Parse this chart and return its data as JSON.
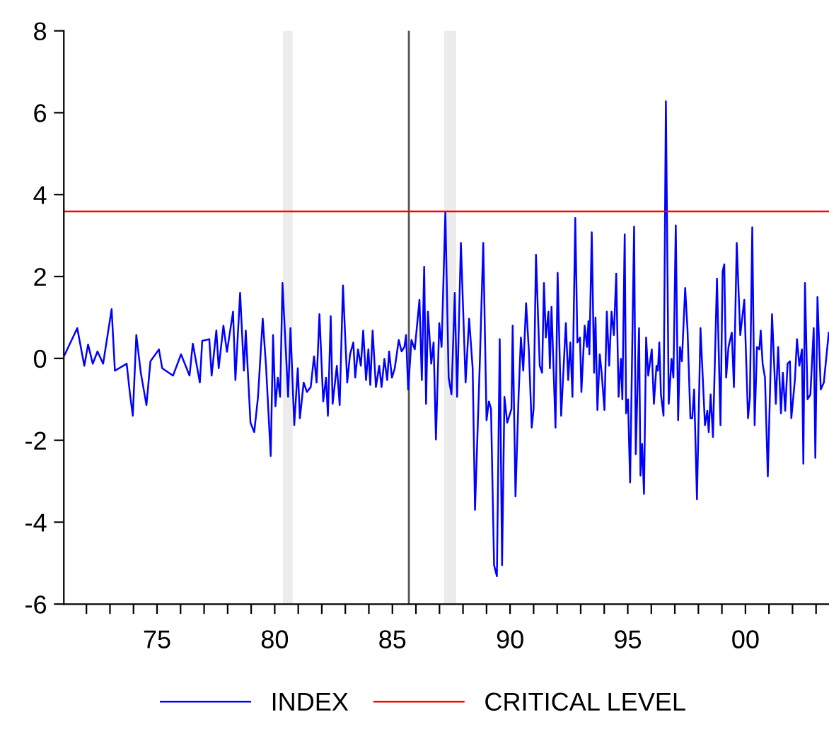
{
  "chart_data": {
    "type": "line",
    "xlim": [
      1971.04,
      2003.55
    ],
    "xticks": [
      {
        "value": 1972,
        "label": null
      },
      {
        "value": 1973,
        "label": null
      },
      {
        "value": 1974,
        "label": null
      },
      {
        "value": 1975,
        "label": "75"
      },
      {
        "value": 1976,
        "label": null
      },
      {
        "value": 1977,
        "label": null
      },
      {
        "value": 1978,
        "label": null
      },
      {
        "value": 1979,
        "label": null
      },
      {
        "value": 1980,
        "label": "80"
      },
      {
        "value": 1981,
        "label": null
      },
      {
        "value": 1982,
        "label": null
      },
      {
        "value": 1983,
        "label": null
      },
      {
        "value": 1984,
        "label": null
      },
      {
        "value": 1985,
        "label": "85"
      },
      {
        "value": 1986,
        "label": null
      },
      {
        "value": 1987,
        "label": null
      },
      {
        "value": 1988,
        "label": null
      },
      {
        "value": 1989,
        "label": null
      },
      {
        "value": 1990,
        "label": "90"
      },
      {
        "value": 1991,
        "label": null
      },
      {
        "value": 1992,
        "label": null
      },
      {
        "value": 1993,
        "label": null
      },
      {
        "value": 1994,
        "label": null
      },
      {
        "value": 1995,
        "label": "95"
      },
      {
        "value": 1996,
        "label": null
      },
      {
        "value": 1997,
        "label": null
      },
      {
        "value": 1998,
        "label": null
      },
      {
        "value": 1999,
        "label": null
      },
      {
        "value": 2000,
        "label": "00"
      },
      {
        "value": 2001,
        "label": null
      },
      {
        "value": 2002,
        "label": null
      },
      {
        "value": 2003,
        "label": null
      }
    ],
    "ylim": [
      -6,
      8
    ],
    "yticks": [
      -6,
      -4,
      -2,
      0,
      2,
      4,
      6,
      8
    ],
    "grid": false,
    "legend": "bottom",
    "ref_lines": [
      {
        "axis": "x",
        "value": 1985.7,
        "color": "#555555"
      }
    ],
    "bands": [
      {
        "axis": "x",
        "from": 1980.35,
        "to": 1980.76,
        "color": "#ececec"
      },
      {
        "axis": "x",
        "from": 1987.19,
        "to": 1987.71,
        "color": "#ececec"
      }
    ],
    "series": [
      {
        "name": "INDEX",
        "color": "#0000ff",
        "x": [
          1971.07,
          1971.61,
          1971.91,
          1972.07,
          1972.27,
          1972.47,
          1972.71,
          1973.07,
          1973.21,
          1973.71,
          1973.85,
          1973.97,
          1974.12,
          1974.31,
          1974.55,
          1974.72,
          1975.08,
          1975.22,
          1975.68,
          1976.02,
          1976.38,
          1976.52,
          1976.82,
          1976.92,
          1977.22,
          1977.32,
          1977.52,
          1977.62,
          1977.82,
          1977.97,
          1978.23,
          1978.33,
          1978.53,
          1978.69,
          1978.77,
          1978.97,
          1979.13,
          1979.29,
          1979.49,
          1979.63,
          1979.83,
          1979.93,
          1980.03,
          1980.13,
          1980.23,
          1980.33,
          1980.57,
          1980.67,
          1980.83,
          1980.98,
          1981.07,
          1981.23,
          1981.37,
          1981.53,
          1981.67,
          1981.78,
          1981.9,
          1982.06,
          1982.18,
          1982.26,
          1982.38,
          1982.46,
          1982.64,
          1982.76,
          1982.9,
          1983.08,
          1983.2,
          1983.34,
          1983.42,
          1983.54,
          1983.66,
          1983.76,
          1983.88,
          1983.98,
          1984.06,
          1984.16,
          1984.3,
          1984.44,
          1984.54,
          1984.66,
          1984.78,
          1984.86,
          1984.98,
          1985.1,
          1985.27,
          1985.39,
          1985.51,
          1985.58,
          1985.67,
          1985.81,
          1985.95,
          1986.15,
          1986.25,
          1986.35,
          1986.43,
          1986.51,
          1986.65,
          1986.75,
          1986.85,
          1986.99,
          1987.09,
          1987.25,
          1987.39,
          1987.51,
          1987.65,
          1987.75,
          1987.91,
          1988.11,
          1988.26,
          1988.41,
          1988.51,
          1988.71,
          1988.86,
          1989.0,
          1989.1,
          1989.19,
          1989.32,
          1989.44,
          1989.56,
          1989.66,
          1989.76,
          1989.88,
          1990.06,
          1990.11,
          1990.23,
          1990.36,
          1990.46,
          1990.56,
          1990.68,
          1990.8,
          1990.92,
          1991.0,
          1991.1,
          1991.26,
          1991.36,
          1991.44,
          1991.52,
          1991.63,
          1991.69,
          1991.76,
          1991.93,
          1992.02,
          1992.17,
          1992.37,
          1992.47,
          1992.56,
          1992.65,
          1992.77,
          1992.86,
          1992.97,
          1993.03,
          1993.17,
          1993.27,
          1993.33,
          1993.37,
          1993.47,
          1993.57,
          1993.63,
          1993.71,
          1993.81,
          1993.89,
          1994.01,
          1994.11,
          1994.21,
          1994.31,
          1994.41,
          1994.51,
          1994.61,
          1994.71,
          1994.77,
          1994.87,
          1994.93,
          1995.01,
          1995.1,
          1995.27,
          1995.34,
          1995.48,
          1995.54,
          1995.61,
          1995.69,
          1995.78,
          1995.87,
          1996.02,
          1996.11,
          1996.22,
          1996.28,
          1996.34,
          1996.41,
          1996.52,
          1996.62,
          1996.74,
          1996.86,
          1996.94,
          1997.04,
          1997.14,
          1997.22,
          1997.3,
          1997.44,
          1997.54,
          1997.66,
          1997.74,
          1997.82,
          1997.94,
          1998.09,
          1998.28,
          1998.38,
          1998.44,
          1998.52,
          1998.62,
          1998.79,
          1998.94,
          1999.03,
          1999.1,
          1999.18,
          1999.28,
          1999.42,
          1999.51,
          1999.63,
          1999.78,
          1999.95,
          2000.11,
          2000.19,
          2000.29,
          2000.39,
          2000.49,
          2000.59,
          2000.65,
          2000.73,
          2000.83,
          2000.95,
          2001.13,
          2001.29,
          2001.39,
          2001.51,
          2001.59,
          2001.69,
          2001.79,
          2001.89,
          2001.95,
          2002.1,
          2002.19,
          2002.29,
          2002.4,
          2002.46,
          2002.53,
          2002.64,
          2002.76,
          2002.9,
          2002.97,
          2003.06,
          2003.2,
          2003.33,
          2003.54
        ],
        "values": [
          0.08,
          0.74,
          -0.18,
          0.34,
          -0.13,
          0.17,
          -0.13,
          1.2,
          -0.3,
          -0.13,
          -0.87,
          -1.4,
          0.57,
          -0.35,
          -1.14,
          -0.07,
          0.22,
          -0.24,
          -0.42,
          0.1,
          -0.42,
          0.36,
          -0.59,
          0.43,
          0.47,
          -0.42,
          0.68,
          -0.24,
          0.8,
          0.16,
          1.14,
          -0.53,
          1.6,
          -0.3,
          0.68,
          -1.57,
          -1.8,
          -0.94,
          0.97,
          -0.18,
          -2.38,
          0.57,
          -1.17,
          -0.47,
          -0.94,
          1.84,
          -0.94,
          0.74,
          -1.63,
          -0.24,
          -1.46,
          -0.59,
          -0.82,
          -0.7,
          0.05,
          -0.59,
          1.08,
          -1.05,
          -0.47,
          -1.4,
          1.03,
          -1.11,
          -0.18,
          -1.14,
          1.78,
          -0.59,
          0.1,
          0.39,
          -0.47,
          0.22,
          -0.18,
          0.68,
          -0.53,
          0.22,
          -0.65,
          0.68,
          -0.7,
          -0.18,
          -0.7,
          -0.01,
          -0.53,
          0.17,
          -0.47,
          -0.24,
          0.45,
          0.17,
          0.28,
          0.57,
          -0.76,
          0.45,
          0.22,
          1.43,
          -0.53,
          2.24,
          -1.11,
          1.14,
          -0.13,
          0.39,
          -1.98,
          0.86,
          0.28,
          3.57,
          -0.47,
          -0.88,
          1.6,
          -0.94,
          2.82,
          -0.59,
          0.97,
          -0.24,
          -3.7,
          -0.18,
          2.82,
          -1.51,
          -1.05,
          -1.23,
          -5.05,
          -5.32,
          0.47,
          -5.05,
          -0.94,
          -1.57,
          -1.23,
          0.8,
          -3.37,
          -0.94,
          0.51,
          -0.3,
          1.35,
          0.17,
          -1.69,
          -1.23,
          2.53,
          -0.18,
          -0.35,
          1.84,
          0.51,
          1.14,
          -0.24,
          1.26,
          -1.69,
          2.09,
          -1.4,
          0.86,
          -0.53,
          0.39,
          -0.94,
          3.43,
          0.39,
          0.51,
          -0.82,
          0.8,
          0.28,
          0.91,
          0.1,
          3.08,
          -0.35,
          1.0,
          -1.26,
          0.1,
          -0.35,
          -1.26,
          1.14,
          -0.18,
          1.14,
          0.57,
          2.07,
          -0.94,
          -0.01,
          -1.0,
          3.03,
          -1.34,
          -1.0,
          -3.03,
          3.22,
          -2.34,
          0.74,
          -2.86,
          -2.09,
          -3.31,
          0.51,
          -0.42,
          0.22,
          -1.11,
          -0.18,
          -0.3,
          0.39,
          -0.88,
          -1.4,
          6.28,
          -1.11,
          -0.01,
          -0.47,
          3.25,
          -1.51,
          0.28,
          -0.07,
          1.72,
          0.68,
          -1.46,
          -1.46,
          -0.76,
          -3.44,
          0.74,
          -1.63,
          -1.28,
          -1.8,
          -0.88,
          -1.92,
          1.95,
          -1.63,
          2.12,
          2.3,
          -0.47,
          0.28,
          0.63,
          -0.7,
          2.82,
          0.57,
          1.43,
          -1.46,
          -0.94,
          3.2,
          -1.63,
          0.28,
          0.22,
          0.68,
          -0.13,
          -0.47,
          -2.88,
          1.08,
          -1.11,
          0.28,
          -1.34,
          -0.35,
          -1.28,
          -0.13,
          -0.07,
          -1.46,
          -0.53,
          0.47,
          -0.18,
          0.22,
          -2.57,
          1.84,
          -1.0,
          -0.88,
          0.74,
          -2.43,
          1.5,
          -0.76,
          -0.59,
          0.63
        ]
      },
      {
        "name": "CRITICAL LEVEL",
        "color": "#ff0000",
        "x": [
          1971.04,
          2003.55
        ],
        "values": [
          3.59,
          3.59
        ]
      }
    ]
  }
}
